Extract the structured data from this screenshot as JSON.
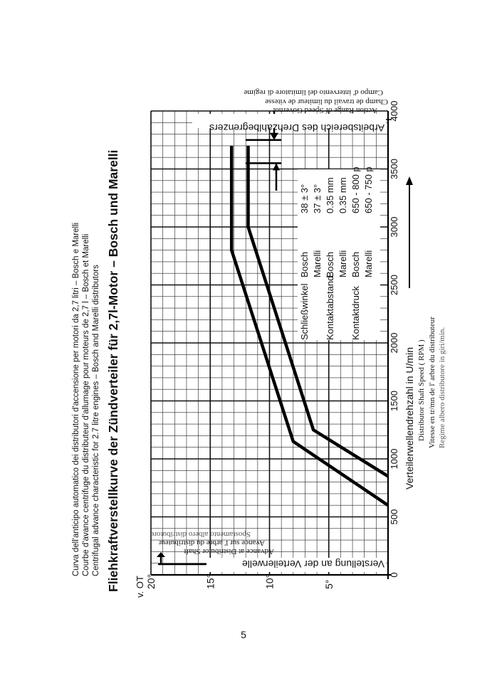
{
  "page": {
    "page_number": "5",
    "caption_it": "Curva dell'anticipo automatico dei distributori d'accensione per motori da 2,7 litri – Bosch e Marelli",
    "caption_fr": "Courbe d'avance centrifuge du distributeur d'allumage pour moteurs de 2,7 l – Bosch et Marelli",
    "caption_en": "Centrifugal advance characteristic for 2.7 litre engines – Bosch and Marelli distributors",
    "main_title": "Fliehkraftverstellkurve der Zündverteiler für 2,7l-Motor  –  Bosch und Marelli"
  },
  "chart_data": {
    "type": "line",
    "title": "Fliehkraftverstellkurve der Zündverteiler für 2,7l-Motor  –  Bosch und Marelli",
    "xlabel": "Verteilerwellendrehzahl in U/min",
    "xlabel_en": "Distributor Shaft Speed ( RPM )",
    "xlabel_fr": "Vitesse en tr/mn de l' arbre du distributeur",
    "xlabel_it": "Regime albero distributore in giri/min.",
    "ylabel": "Verstellung an der Verteilerwelle",
    "ylabel_en": "Advance at Distributor Shaft",
    "ylabel_fr": "Avance sur l' arbre du distributeur",
    "ylabel_it": "Spostamento albero distributore",
    "y_unit_label": "v. OT",
    "xlim": [
      0,
      4000
    ],
    "ylim": [
      0,
      20
    ],
    "x_ticks": [
      "0",
      "500",
      "1000",
      "1500",
      "2000",
      "2500",
      "3000",
      "3500",
      "4000"
    ],
    "y_ticks": [
      "5°",
      "10°",
      "15°",
      "20°"
    ],
    "grid": true,
    "series": [
      {
        "x": [
          600,
          1150,
          2800,
          3700
        ],
        "y": [
          0,
          8,
          13.2,
          13.2
        ]
      },
      {
        "x": [
          850,
          1250,
          3000,
          3700
        ],
        "y": [
          0,
          6.3,
          11.8,
          11.8
        ]
      }
    ],
    "governor_label": "Arbeitsbereich des Drehzahlbegrenzers",
    "governor_label_en": "Action Range of Speed Governor",
    "governor_label_fr": "Champ de travail du limiteur de vitesse",
    "governor_label_it": "Campo d' intervento del limitatore di regime",
    "governor_range": [
      3550,
      3750
    ],
    "spec_table": [
      [
        "Schließwinkel",
        "Bosch",
        "38 ± 3°"
      ],
      [
        "",
        "Marelli",
        "37 ± 3°"
      ],
      [
        "Kontaktabstand",
        "Bosch",
        "0.35 mm"
      ],
      [
        "",
        "Marelli",
        "0.35 mm"
      ],
      [
        "Kontaktdruck",
        "Bosch",
        "650 - 800 p"
      ],
      [
        "",
        "Marelli",
        "650 - 750 p"
      ]
    ]
  }
}
